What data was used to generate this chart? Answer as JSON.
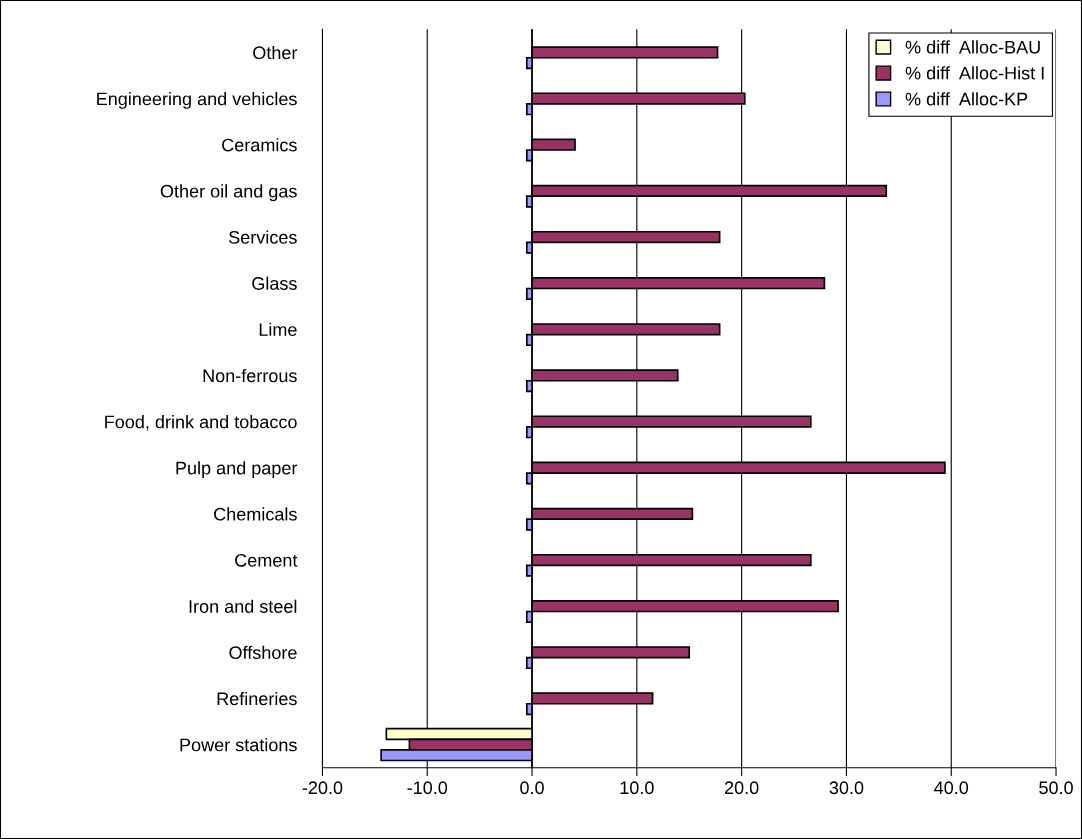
{
  "chart_data": {
    "type": "bar",
    "orientation": "horizontal",
    "categories": [
      "Other",
      "Engineering and vehicles",
      "Ceramics",
      "Other oil and gas",
      "Services",
      "Glass",
      "Lime",
      "Non-ferrous",
      "Food, drink and tobacco",
      "Pulp and paper",
      "Chemicals",
      "Cement",
      "Iron and steel",
      "Offshore",
      "Refineries",
      "Power stations"
    ],
    "series": [
      {
        "name": "% diff  Alloc-BAU",
        "color": "#ffffcc",
        "values": [
          null,
          null,
          null,
          null,
          null,
          null,
          null,
          null,
          null,
          null,
          null,
          null,
          null,
          null,
          null,
          -13.9
        ]
      },
      {
        "name": "% diff  Alloc-Hist I",
        "color": "#993366",
        "values": [
          17.7,
          20.3,
          4.1,
          33.8,
          17.9,
          27.9,
          17.9,
          13.9,
          26.6,
          39.4,
          15.3,
          26.6,
          29.2,
          15.0,
          11.5,
          -11.7
        ]
      },
      {
        "name": "% diff  Alloc-KP",
        "color": "#9999ff",
        "values": [
          -0.5,
          -0.5,
          -0.5,
          -0.5,
          -0.5,
          -0.5,
          -0.5,
          -0.5,
          -0.5,
          -0.5,
          -0.5,
          -0.5,
          -0.5,
          -0.5,
          -0.5,
          -14.4
        ]
      }
    ],
    "xlim": [
      -20,
      50
    ],
    "xticks": [
      {
        "value": -20,
        "label": "-20.0"
      },
      {
        "value": -10,
        "label": "-10.0"
      },
      {
        "value": 0,
        "label": "0.0"
      },
      {
        "value": 10,
        "label": "10.0"
      },
      {
        "value": 20,
        "label": "20.0"
      },
      {
        "value": 30,
        "label": "30.0"
      },
      {
        "value": 40,
        "label": "40.0"
      },
      {
        "value": 50,
        "label": "50.0"
      }
    ],
    "grid": "x",
    "legend": "top right"
  }
}
